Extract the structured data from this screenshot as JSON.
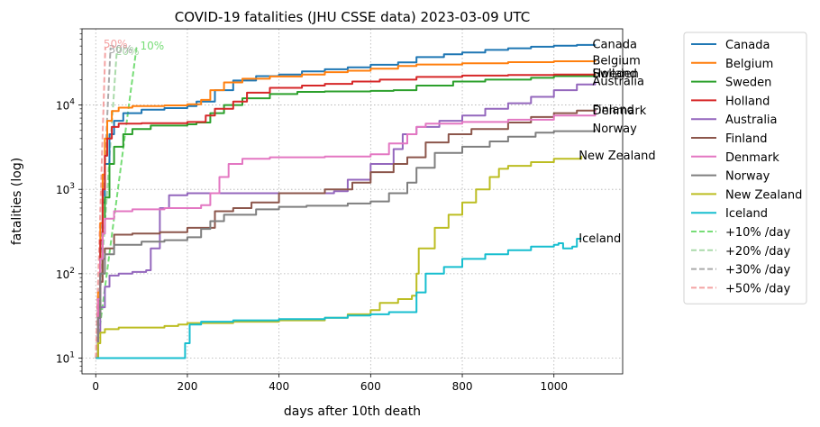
{
  "chart_data": {
    "type": "line",
    "title": "COVID-19 fatalities (JHU CSSE data) 2023-03-09 UTC",
    "xlabel": "days after 10th death",
    "ylabel": "fatalities (log)",
    "xlim": [
      -30,
      1150
    ],
    "ylim": [
      6.5,
      80000
    ],
    "y_scale": "log",
    "x_ticks": [
      0,
      200,
      400,
      600,
      800,
      1000
    ],
    "y_ticks": [
      {
        "value": 10,
        "base": "10",
        "exp": "1"
      },
      {
        "value": 100,
        "base": "10",
        "exp": "2"
      },
      {
        "value": 1000,
        "base": "10",
        "exp": "3"
      },
      {
        "value": 10000,
        "base": "10",
        "exp": "4"
      }
    ],
    "grid": true,
    "legend_position": "outside-right",
    "series": [
      {
        "name": "Canada",
        "color": "#1f77b4",
        "end_label": "Canada",
        "points": [
          [
            0,
            10
          ],
          [
            5,
            40
          ],
          [
            10,
            200
          ],
          [
            15,
            700
          ],
          [
            20,
            2000
          ],
          [
            30,
            4500
          ],
          [
            40,
            6500
          ],
          [
            60,
            8000
          ],
          [
            100,
            8800
          ],
          [
            150,
            9200
          ],
          [
            200,
            9700
          ],
          [
            220,
            11000
          ],
          [
            260,
            15000
          ],
          [
            300,
            19500
          ],
          [
            350,
            22000
          ],
          [
            400,
            23000
          ],
          [
            450,
            25000
          ],
          [
            500,
            26500
          ],
          [
            550,
            28000
          ],
          [
            600,
            30000
          ],
          [
            660,
            32000
          ],
          [
            700,
            37000
          ],
          [
            760,
            40000
          ],
          [
            800,
            42000
          ],
          [
            850,
            45000
          ],
          [
            900,
            47000
          ],
          [
            950,
            49000
          ],
          [
            1000,
            50500
          ],
          [
            1050,
            51500
          ],
          [
            1090,
            52000
          ]
        ]
      },
      {
        "name": "Belgium",
        "color": "#ff7f0e",
        "end_label": "Belgium",
        "points": [
          [
            0,
            10
          ],
          [
            5,
            60
          ],
          [
            10,
            400
          ],
          [
            15,
            1500
          ],
          [
            20,
            4000
          ],
          [
            25,
            6500
          ],
          [
            35,
            8500
          ],
          [
            50,
            9300
          ],
          [
            80,
            9700
          ],
          [
            150,
            9900
          ],
          [
            200,
            10200
          ],
          [
            230,
            11500
          ],
          [
            250,
            15000
          ],
          [
            280,
            18500
          ],
          [
            320,
            20500
          ],
          [
            380,
            21800
          ],
          [
            450,
            23000
          ],
          [
            500,
            24500
          ],
          [
            550,
            25500
          ],
          [
            600,
            27000
          ],
          [
            660,
            29000
          ],
          [
            700,
            30200
          ],
          [
            800,
            31200
          ],
          [
            900,
            32200
          ],
          [
            1000,
            33000
          ],
          [
            1090,
            33500
          ]
        ]
      },
      {
        "name": "Sweden",
        "color": "#2ca02c",
        "end_label": "Sweden",
        "points": [
          [
            0,
            10
          ],
          [
            5,
            30
          ],
          [
            10,
            100
          ],
          [
            15,
            300
          ],
          [
            20,
            800
          ],
          [
            30,
            2000
          ],
          [
            40,
            3200
          ],
          [
            60,
            4500
          ],
          [
            80,
            5200
          ],
          [
            120,
            5700
          ],
          [
            200,
            5900
          ],
          [
            220,
            6200
          ],
          [
            250,
            8000
          ],
          [
            280,
            10000
          ],
          [
            320,
            12000
          ],
          [
            380,
            13500
          ],
          [
            440,
            14300
          ],
          [
            500,
            14500
          ],
          [
            600,
            14700
          ],
          [
            650,
            15000
          ],
          [
            700,
            17000
          ],
          [
            780,
            19000
          ],
          [
            850,
            20000
          ],
          [
            950,
            21000
          ],
          [
            1000,
            22000
          ],
          [
            1090,
            23500
          ]
        ]
      },
      {
        "name": "Holland",
        "color": "#d62728",
        "end_label": "Holland",
        "points": [
          [
            0,
            10
          ],
          [
            5,
            50
          ],
          [
            10,
            250
          ],
          [
            15,
            1000
          ],
          [
            20,
            2500
          ],
          [
            25,
            4000
          ],
          [
            35,
            5500
          ],
          [
            50,
            6000
          ],
          [
            100,
            6100
          ],
          [
            200,
            6300
          ],
          [
            240,
            7500
          ],
          [
            260,
            9000
          ],
          [
            300,
            11000
          ],
          [
            330,
            14000
          ],
          [
            380,
            16000
          ],
          [
            450,
            17000
          ],
          [
            500,
            17800
          ],
          [
            560,
            19000
          ],
          [
            620,
            20000
          ],
          [
            700,
            21500
          ],
          [
            800,
            22300
          ],
          [
            900,
            22700
          ],
          [
            1000,
            23000
          ],
          [
            1090,
            23300
          ]
        ]
      },
      {
        "name": "Australia",
        "color": "#9467bd",
        "end_label": "Australia",
        "points": [
          [
            0,
            10
          ],
          [
            5,
            20
          ],
          [
            10,
            40
          ],
          [
            20,
            70
          ],
          [
            30,
            95
          ],
          [
            50,
            100
          ],
          [
            80,
            105
          ],
          [
            110,
            110
          ],
          [
            120,
            200
          ],
          [
            140,
            600
          ],
          [
            160,
            850
          ],
          [
            200,
            900
          ],
          [
            300,
            900
          ],
          [
            400,
            900
          ],
          [
            500,
            900
          ],
          [
            520,
            950
          ],
          [
            550,
            1300
          ],
          [
            600,
            2000
          ],
          [
            650,
            3000
          ],
          [
            670,
            4500
          ],
          [
            700,
            5500
          ],
          [
            750,
            6500
          ],
          [
            800,
            7500
          ],
          [
            850,
            9000
          ],
          [
            900,
            10500
          ],
          [
            950,
            12500
          ],
          [
            1000,
            15000
          ],
          [
            1050,
            17500
          ],
          [
            1090,
            19000
          ]
        ]
      },
      {
        "name": "Finland",
        "color": "#8c564b",
        "end_label": "Finland",
        "points": [
          [
            0,
            10
          ],
          [
            5,
            30
          ],
          [
            10,
            80
          ],
          [
            15,
            150
          ],
          [
            20,
            200
          ],
          [
            40,
            290
          ],
          [
            80,
            300
          ],
          [
            140,
            310
          ],
          [
            200,
            350
          ],
          [
            260,
            550
          ],
          [
            300,
            600
          ],
          [
            340,
            700
          ],
          [
            400,
            900
          ],
          [
            500,
            1000
          ],
          [
            560,
            1200
          ],
          [
            600,
            1600
          ],
          [
            650,
            2000
          ],
          [
            680,
            2400
          ],
          [
            720,
            3600
          ],
          [
            770,
            4500
          ],
          [
            820,
            5200
          ],
          [
            900,
            6200
          ],
          [
            950,
            7200
          ],
          [
            1000,
            8000
          ],
          [
            1050,
            8600
          ],
          [
            1090,
            8800
          ]
        ]
      },
      {
        "name": "Denmark",
        "color": "#e377c2",
        "end_label": "Denmark",
        "points": [
          [
            0,
            10
          ],
          [
            5,
            50
          ],
          [
            10,
            150
          ],
          [
            15,
            300
          ],
          [
            20,
            450
          ],
          [
            40,
            550
          ],
          [
            80,
            580
          ],
          [
            150,
            600
          ],
          [
            230,
            650
          ],
          [
            250,
            900
          ],
          [
            270,
            1400
          ],
          [
            290,
            2000
          ],
          [
            320,
            2300
          ],
          [
            380,
            2400
          ],
          [
            500,
            2450
          ],
          [
            600,
            2600
          ],
          [
            640,
            3500
          ],
          [
            680,
            4500
          ],
          [
            700,
            5500
          ],
          [
            720,
            6000
          ],
          [
            800,
            6300
          ],
          [
            900,
            6700
          ],
          [
            1000,
            7500
          ],
          [
            1090,
            8500
          ]
        ]
      },
      {
        "name": "Norway",
        "color": "#7f7f7f",
        "end_label": "Norway",
        "points": [
          [
            0,
            10
          ],
          [
            5,
            30
          ],
          [
            10,
            100
          ],
          [
            20,
            170
          ],
          [
            40,
            220
          ],
          [
            100,
            240
          ],
          [
            150,
            250
          ],
          [
            200,
            270
          ],
          [
            230,
            340
          ],
          [
            250,
            420
          ],
          [
            280,
            500
          ],
          [
            350,
            580
          ],
          [
            400,
            620
          ],
          [
            460,
            640
          ],
          [
            550,
            680
          ],
          [
            600,
            720
          ],
          [
            640,
            900
          ],
          [
            680,
            1200
          ],
          [
            700,
            1800
          ],
          [
            740,
            2700
          ],
          [
            800,
            3200
          ],
          [
            860,
            3700
          ],
          [
            900,
            4200
          ],
          [
            960,
            4700
          ],
          [
            1000,
            4900
          ],
          [
            1090,
            5200
          ]
        ]
      },
      {
        "name": "New Zealand",
        "color": "#bcbd22",
        "end_label": "New Zealand",
        "points": [
          [
            0,
            10
          ],
          [
            5,
            15
          ],
          [
            10,
            20
          ],
          [
            20,
            22
          ],
          [
            50,
            23
          ],
          [
            100,
            23
          ],
          [
            150,
            24
          ],
          [
            180,
            25
          ],
          [
            200,
            26
          ],
          [
            300,
            27
          ],
          [
            400,
            28
          ],
          [
            500,
            30
          ],
          [
            550,
            33
          ],
          [
            600,
            37
          ],
          [
            620,
            45
          ],
          [
            660,
            50
          ],
          [
            690,
            55
          ],
          [
            700,
            100
          ],
          [
            705,
            200
          ],
          [
            740,
            350
          ],
          [
            770,
            500
          ],
          [
            800,
            700
          ],
          [
            830,
            1000
          ],
          [
            860,
            1400
          ],
          [
            880,
            1750
          ],
          [
            900,
            1900
          ],
          [
            950,
            2100
          ],
          [
            1000,
            2300
          ],
          [
            1060,
            2500
          ]
        ]
      },
      {
        "name": "Iceland",
        "color": "#17becf",
        "end_label": "Iceland",
        "points": [
          [
            0,
            10
          ],
          [
            100,
            10
          ],
          [
            180,
            10
          ],
          [
            195,
            15
          ],
          [
            205,
            25
          ],
          [
            230,
            27
          ],
          [
            300,
            28
          ],
          [
            400,
            29
          ],
          [
            500,
            30
          ],
          [
            550,
            32
          ],
          [
            600,
            33
          ],
          [
            640,
            35
          ],
          [
            700,
            60
          ],
          [
            720,
            100
          ],
          [
            760,
            120
          ],
          [
            780,
            120
          ],
          [
            800,
            150
          ],
          [
            850,
            170
          ],
          [
            900,
            190
          ],
          [
            950,
            210
          ],
          [
            1000,
            220
          ],
          [
            1010,
            230
          ],
          [
            1020,
            200
          ],
          [
            1040,
            210
          ],
          [
            1050,
            260
          ],
          [
            1060,
            260
          ]
        ]
      }
    ],
    "growth_lines": [
      {
        "name": "+10% /day",
        "rate": 0.1,
        "color": "#77dd77",
        "label": "10%"
      },
      {
        "name": "+20% /day",
        "rate": 0.2,
        "color": "#aadaaa",
        "label": "20%"
      },
      {
        "name": "+30% /day",
        "rate": 0.3,
        "color": "#aaaaaa",
        "label": "30%"
      },
      {
        "name": "+50% /day",
        "rate": 0.5,
        "color": "#f4a3a3",
        "label": "50%"
      }
    ]
  }
}
